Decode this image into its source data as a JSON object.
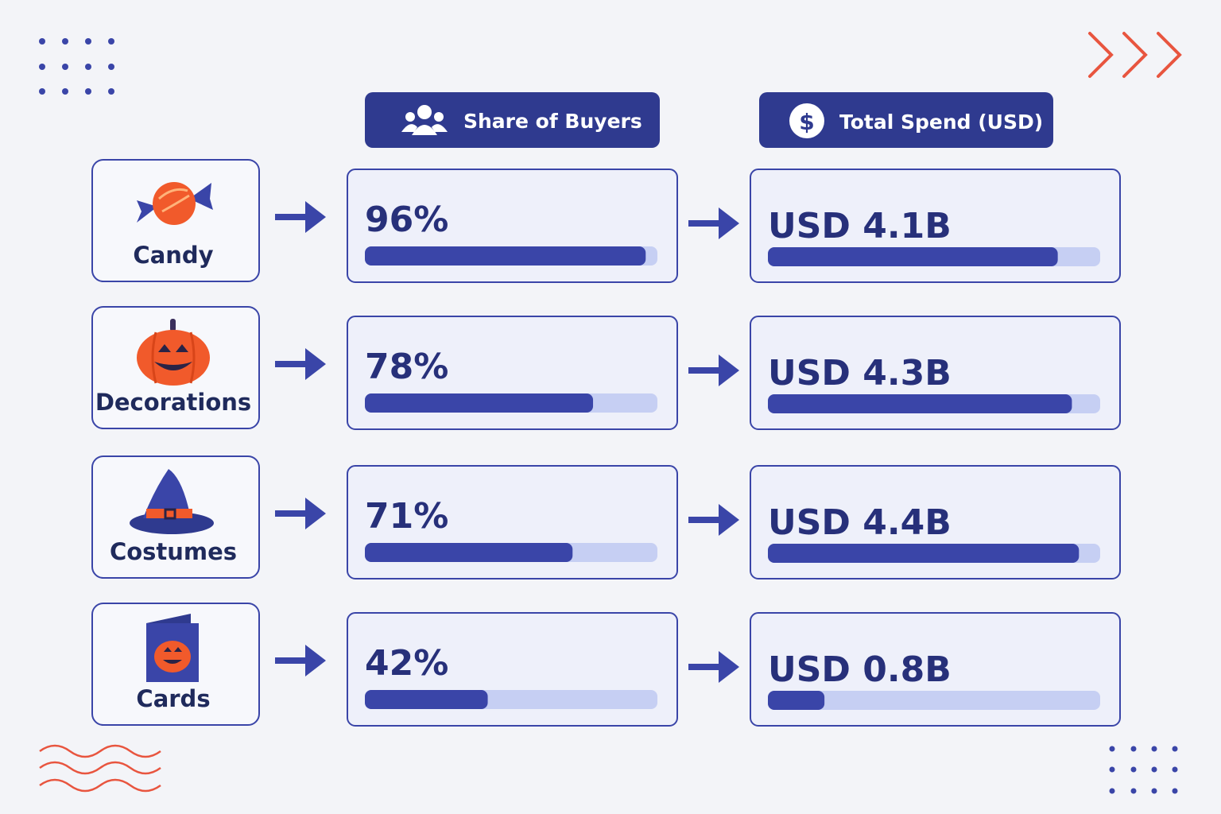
{
  "chart_data": {
    "type": "bar",
    "categories": [
      "Candy",
      "Decorations",
      "Costumes",
      "Cards"
    ],
    "series": [
      {
        "name": "Share of Buyers",
        "color": "#3a45a8",
        "values": [
          96,
          78,
          71,
          42
        ],
        "value_labels": [
          "96%",
          "78%",
          "71%",
          "42%"
        ],
        "xlim": [
          0,
          100
        ]
      },
      {
        "name": "Total Spend (USD)",
        "color": "#3a45a8",
        "values": [
          4.1,
          4.3,
          4.4,
          0.8
        ],
        "value_labels": [
          "USD 4.1B",
          "USD 4.3B",
          "USD 4.4B",
          "USD 0.8B"
        ],
        "xlim": [
          0,
          4.7
        ]
      }
    ],
    "track_color": "#c6cff3"
  }
}
